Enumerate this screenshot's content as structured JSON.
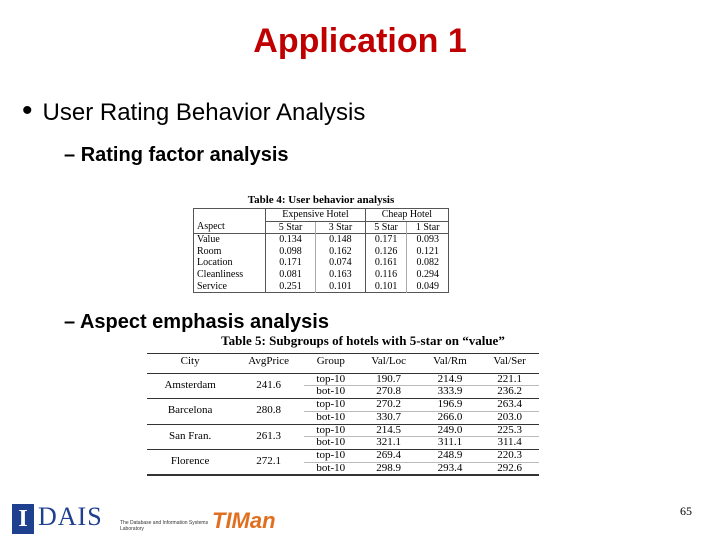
{
  "title": "Application 1",
  "bullet": "User Rating Behavior Analysis",
  "sub_bullets": [
    "Rating factor analysis",
    "Aspect emphasis analysis"
  ],
  "table4": {
    "caption": "Table 4: User behavior analysis",
    "group_headers": [
      "Expensive Hotel",
      "Cheap Hotel"
    ],
    "columns": [
      "Aspect",
      "5 Star",
      "3 Star",
      "5 Star",
      "1 Star"
    ],
    "rows": [
      [
        "Value",
        "0.134",
        "0.148",
        "0.171",
        "0.093"
      ],
      [
        "Room",
        "0.098",
        "0.162",
        "0.126",
        "0.121"
      ],
      [
        "Location",
        "0.171",
        "0.074",
        "0.161",
        "0.082"
      ],
      [
        "Cleanliness",
        "0.081",
        "0.163",
        "0.116",
        "0.294"
      ],
      [
        "Service",
        "0.251",
        "0.101",
        "0.101",
        "0.049"
      ]
    ]
  },
  "table5": {
    "caption": "Table 5: Subgroups of hotels with 5-star on “value”",
    "columns": [
      "City",
      "AvgPrice",
      "Group",
      "Val/Loc",
      "Val/Rm",
      "Val/Ser"
    ],
    "groups": [
      {
        "city": "Amsterdam",
        "avg_price": "241.6",
        "rows": [
          [
            "top-10",
            "190.7",
            "214.9",
            "221.1"
          ],
          [
            "bot-10",
            "270.8",
            "333.9",
            "236.2"
          ]
        ]
      },
      {
        "city": "Barcelona",
        "avg_price": "280.8",
        "rows": [
          [
            "top-10",
            "270.2",
            "196.9",
            "263.4"
          ],
          [
            "bot-10",
            "330.7",
            "266.0",
            "203.0"
          ]
        ]
      },
      {
        "city": "San Fran.",
        "avg_price": "261.3",
        "rows": [
          [
            "top-10",
            "214.5",
            "249.0",
            "225.3"
          ],
          [
            "bot-10",
            "321.1",
            "311.1",
            "311.4"
          ]
        ]
      },
      {
        "city": "Florence",
        "avg_price": "272.1",
        "rows": [
          [
            "top-10",
            "269.4",
            "248.9",
            "220.3"
          ],
          [
            "bot-10",
            "298.9",
            "293.4",
            "292.6"
          ]
        ]
      }
    ]
  },
  "footer": {
    "logo_dais": "DAIS",
    "logo_lab": "The Database and Information Systems Laboratory",
    "logo_timan": "TIMan",
    "page_number": "65"
  }
}
